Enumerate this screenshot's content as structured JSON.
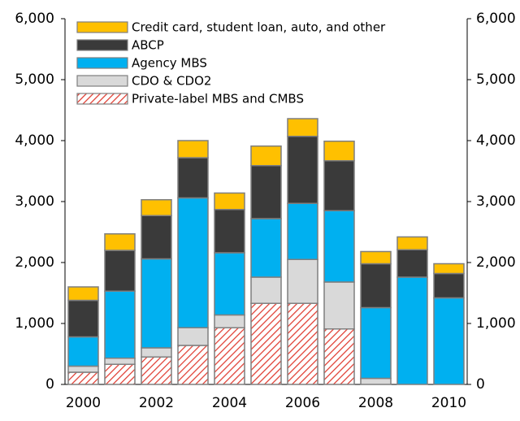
{
  "chart_data": {
    "type": "stacked-bar",
    "categories": [
      "2000",
      null,
      "2002",
      null,
      "2004",
      null,
      "2006",
      null,
      "2008",
      null,
      "2010"
    ],
    "series": [
      {
        "name": "Private-label MBS and CMBS",
        "color": "#e03c31",
        "hatch": true,
        "values": [
          200,
          330,
          450,
          640,
          930,
          1330,
          1330,
          910,
          0,
          0,
          0
        ]
      },
      {
        "name": "CDO & CDO2",
        "color": "#d9d9d9",
        "values": [
          100,
          100,
          150,
          290,
          210,
          430,
          720,
          770,
          100,
          0,
          0
        ]
      },
      {
        "name": "Agency MBS",
        "color": "#00b0f0",
        "values": [
          480,
          1100,
          1460,
          2130,
          1020,
          960,
          920,
          1170,
          1160,
          1760,
          1420
        ]
      },
      {
        "name": "ABCP",
        "color": "#3a3a3a",
        "values": [
          600,
          670,
          710,
          660,
          710,
          870,
          1100,
          820,
          720,
          450,
          400
        ]
      },
      {
        "name": "Credit card, student loan, auto, and other",
        "color": "#ffc000",
        "values": [
          220,
          270,
          260,
          280,
          270,
          320,
          290,
          320,
          200,
          210,
          160
        ]
      }
    ],
    "ylim": [
      0,
      6000
    ],
    "yticks": [
      0,
      {
        "value": 1000,
        "label": "1,000"
      },
      {
        "value": 2000,
        "label": "2,000"
      },
      {
        "value": 3000,
        "label": "3,000"
      },
      {
        "value": 4000,
        "label": "4,000"
      },
      {
        "value": 5000,
        "label": "5,000"
      },
      {
        "value": 6000,
        "label": "6,000"
      }
    ],
    "y2lim": [
      0,
      6000
    ],
    "y2ticks": [
      0,
      {
        "value": 1000,
        "label": "1,000"
      },
      {
        "value": 2000,
        "label": "2,000"
      },
      {
        "value": 3000,
        "label": "3,000"
      },
      {
        "value": 4000,
        "label": "4,000"
      },
      {
        "value": 5000,
        "label": "5,000"
      },
      {
        "value": 6000,
        "label": "6,000"
      }
    ],
    "legend": "top-left"
  }
}
